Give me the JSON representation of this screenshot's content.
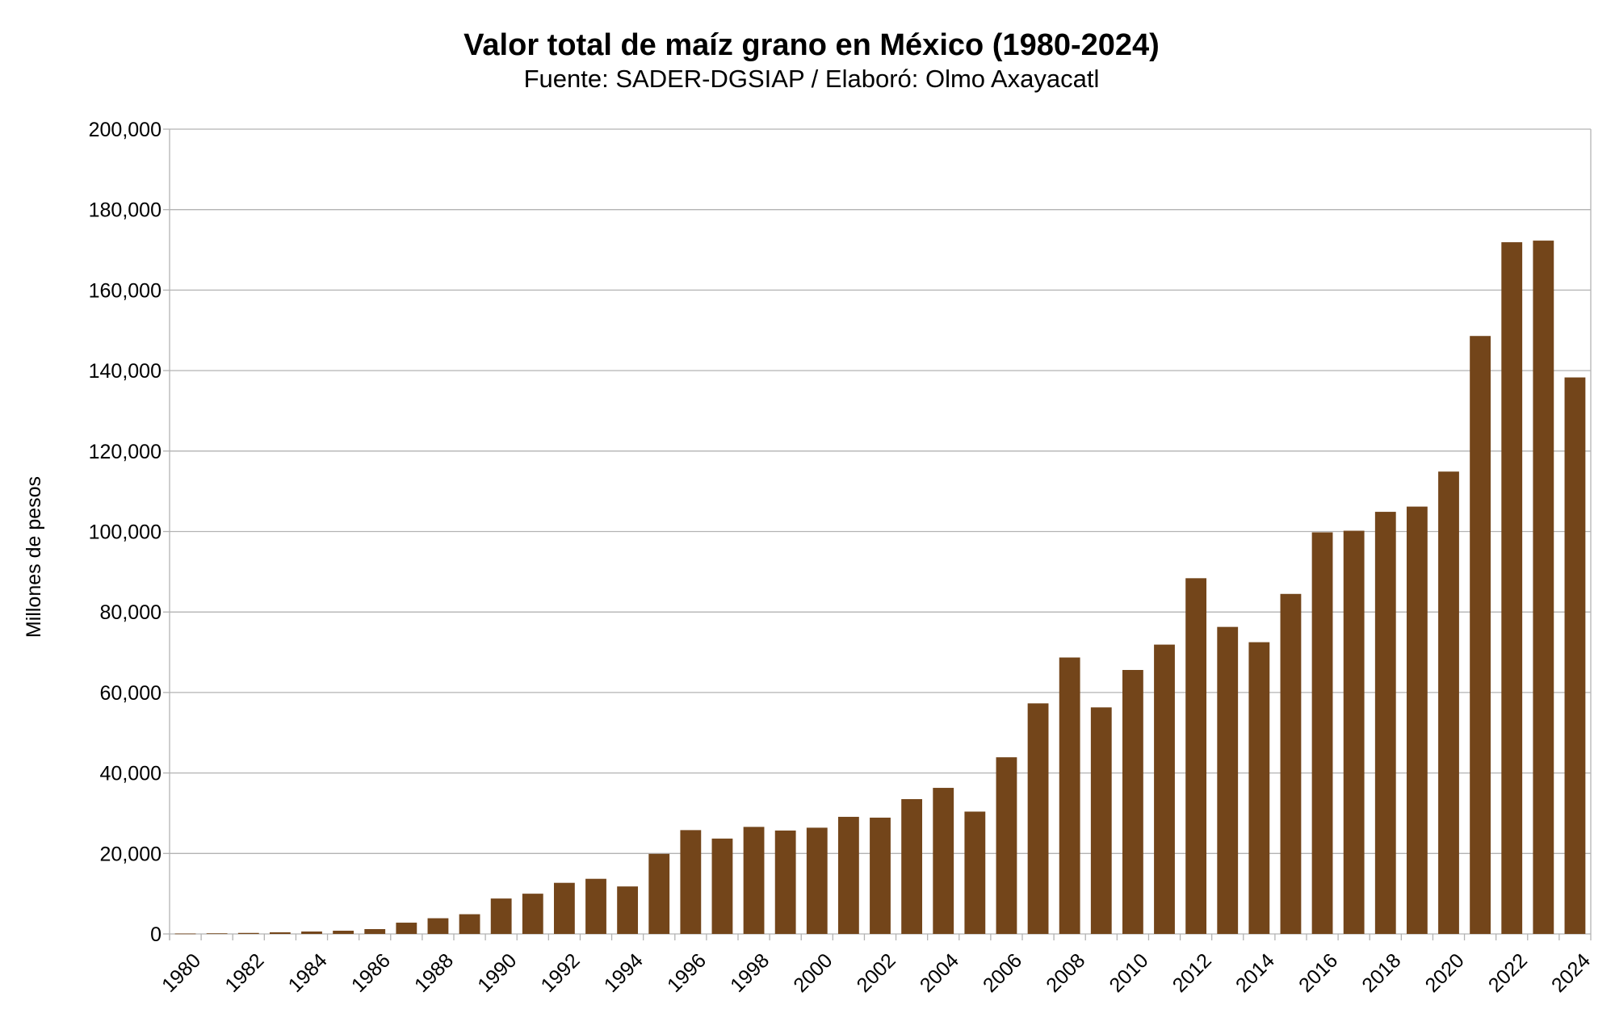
{
  "chart_data": {
    "type": "bar",
    "title": "Valor total de maíz grano en México (1980-2024)",
    "subtitle": "Fuente: SADER-DGSIAP / Elaboró: Olmo Axayacatl",
    "xlabel": "",
    "ylabel": "Millones de pesos",
    "ylim": [
      0,
      200000
    ],
    "yticks": [
      0,
      20000,
      40000,
      60000,
      80000,
      100000,
      120000,
      140000,
      160000,
      180000,
      200000
    ],
    "ytick_labels": [
      "0",
      "20,000",
      "40,000",
      "60,000",
      "80,000",
      "100,000",
      "120,000",
      "140,000",
      "160,000",
      "180,000",
      "200,000"
    ],
    "grid": true,
    "bar_color": "#73451A",
    "categories": [
      "1980",
      "1981",
      "1982",
      "1983",
      "1984",
      "1985",
      "1986",
      "1987",
      "1988",
      "1989",
      "1990",
      "1991",
      "1992",
      "1993",
      "1994",
      "1995",
      "1996",
      "1997",
      "1998",
      "1999",
      "2000",
      "2001",
      "2002",
      "2003",
      "2004",
      "2005",
      "2006",
      "2007",
      "2008",
      "2009",
      "2010",
      "2011",
      "2012",
      "2013",
      "2014",
      "2015",
      "2016",
      "2017",
      "2018",
      "2019",
      "2020",
      "2021",
      "2022",
      "2023",
      "2024"
    ],
    "xtick_labels": [
      "1980",
      "1982",
      "1984",
      "1986",
      "1988",
      "1990",
      "1992",
      "1994",
      "1996",
      "1998",
      "2000",
      "2002",
      "2004",
      "2006",
      "2008",
      "2010",
      "2012",
      "2014",
      "2016",
      "2018",
      "2020",
      "2022",
      "2024"
    ],
    "values": [
      100,
      150,
      250,
      400,
      600,
      800,
      1200,
      2800,
      3900,
      4900,
      8800,
      10000,
      12700,
      13700,
      11800,
      19900,
      25800,
      23700,
      26600,
      25700,
      26400,
      29100,
      28900,
      33500,
      36300,
      30400,
      43900,
      57300,
      68700,
      56300,
      65600,
      71900,
      88400,
      76300,
      72500,
      84500,
      99800,
      100200,
      104900,
      106200,
      114900,
      148600,
      171900,
      172300,
      138300
    ]
  }
}
